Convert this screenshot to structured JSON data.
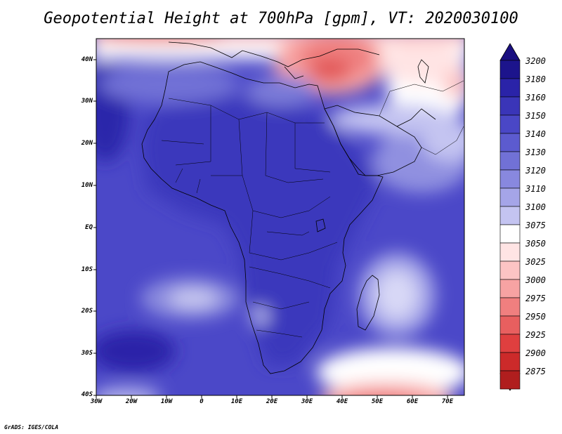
{
  "title": "Geopotential Height at 700hPa [gpm], VT: 2020030100",
  "credit": "GrADS: IGES/COLA",
  "latitude_labels": [
    "40N",
    "30N",
    "20N",
    "10N",
    "EQ",
    "10S",
    "20S",
    "30S",
    "40S"
  ],
  "longitude_labels": [
    "30W",
    "20W",
    "10W",
    "0",
    "10E",
    "20E",
    "30E",
    "40E",
    "50E",
    "60E",
    "70E"
  ],
  "colorbar": {
    "levels": [
      "3200",
      "3180",
      "3160",
      "3150",
      "3140",
      "3130",
      "3120",
      "3110",
      "3100",
      "3075",
      "3050",
      "3025",
      "3000",
      "2975",
      "2950",
      "2925",
      "2900",
      "2875"
    ],
    "colors": [
      "#1c148c",
      "#2a23a8",
      "#3a35b8",
      "#4a47c6",
      "#5c5bcf",
      "#7171d6",
      "#8888df",
      "#a5a5e8",
      "#c4c4f1",
      "#ffffff",
      "#ffe4e4",
      "#fcc4c4",
      "#f7a3a3",
      "#f07f7f",
      "#e85f5f",
      "#df3f3f",
      "#cc2a2a",
      "#b01e1e"
    ],
    "top_color": "#1a0f80",
    "bottom_color": "#a41616"
  },
  "map_colors": {
    "ocean_base": "#4b48c8",
    "land_base": "#3c38bc",
    "deep": "#2c28aa",
    "light": "#9c9ce4",
    "pale": "#d4d4f4",
    "white": "#ffffff",
    "pink": "#fbd0d0",
    "red": "#ef8080",
    "deep_red": "#e25858"
  }
}
